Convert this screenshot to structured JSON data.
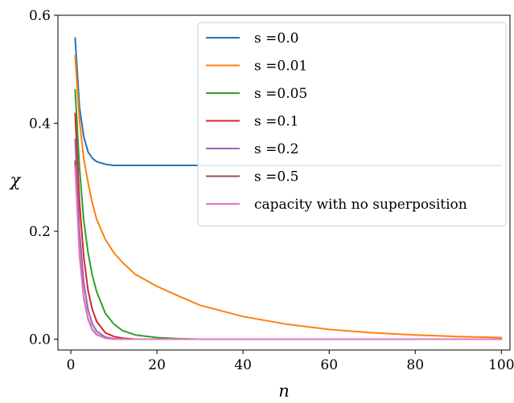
{
  "chart_data": {
    "type": "line",
    "xlabel": "n",
    "ylabel": "χ",
    "xlim": [
      -3,
      102
    ],
    "ylim": [
      -0.02,
      0.6
    ],
    "xticks": [
      "0",
      "20",
      "40",
      "60",
      "80",
      "100"
    ],
    "yticks": [
      "0.0",
      "0.2",
      "0.4",
      "0.6"
    ],
    "legend_position": "top-right",
    "grid": false,
    "x": [
      1,
      2,
      3,
      4,
      5,
      6,
      8,
      10,
      12,
      15,
      20,
      25,
      30,
      40,
      50,
      60,
      70,
      80,
      90,
      100
    ],
    "series": [
      {
        "name": "s =0.0",
        "color": "#1f77b4",
        "values": [
          0.558,
          0.43,
          0.375,
          0.347,
          0.335,
          0.329,
          0.324,
          0.322,
          0.322,
          0.322,
          0.322,
          0.322,
          0.322,
          0.322,
          0.322,
          0.322,
          0.322,
          0.322,
          0.322,
          0.322
        ]
      },
      {
        "name": "s =0.01",
        "color": "#ff7f0e",
        "values": [
          0.525,
          0.405,
          0.335,
          0.29,
          0.252,
          0.222,
          0.185,
          0.16,
          0.142,
          0.12,
          0.098,
          0.08,
          0.063,
          0.042,
          0.028,
          0.018,
          0.012,
          0.008,
          0.005,
          0.003
        ]
      },
      {
        "name": "s =0.05",
        "color": "#2ca02c",
        "values": [
          0.462,
          0.318,
          0.22,
          0.16,
          0.118,
          0.088,
          0.048,
          0.028,
          0.016,
          0.008,
          0.003,
          0.001,
          0.0,
          0.0,
          0.0,
          0.0,
          0.0,
          0.0,
          0.0,
          0.0
        ]
      },
      {
        "name": "s =0.1",
        "color": "#d62728",
        "values": [
          0.418,
          0.255,
          0.152,
          0.09,
          0.055,
          0.033,
          0.012,
          0.005,
          0.002,
          0.0,
          0.0,
          0.0,
          0.0,
          0.0,
          0.0,
          0.0,
          0.0,
          0.0,
          0.0,
          0.0
        ]
      },
      {
        "name": "s =0.2",
        "color": "#9467bd",
        "values": [
          0.37,
          0.2,
          0.105,
          0.055,
          0.028,
          0.015,
          0.004,
          0.001,
          0.0,
          0.0,
          0.0,
          0.0,
          0.0,
          0.0,
          0.0,
          0.0,
          0.0,
          0.0,
          0.0,
          0.0
        ]
      },
      {
        "name": "s =0.5",
        "color": "#8c564b",
        "values": [
          0.33,
          0.16,
          0.078,
          0.038,
          0.018,
          0.009,
          0.002,
          0.0,
          0.0,
          0.0,
          0.0,
          0.0,
          0.0,
          0.0,
          0.0,
          0.0,
          0.0,
          0.0,
          0.0,
          0.0
        ]
      },
      {
        "name": "capacity with no superposition",
        "color": "#e377c2",
        "values": [
          0.32,
          0.155,
          0.075,
          0.036,
          0.017,
          0.008,
          0.002,
          0.0,
          0.0,
          0.0,
          0.0,
          0.0,
          0.0,
          0.0,
          0.0,
          0.0,
          0.0,
          0.0,
          0.0,
          0.0
        ]
      }
    ]
  }
}
